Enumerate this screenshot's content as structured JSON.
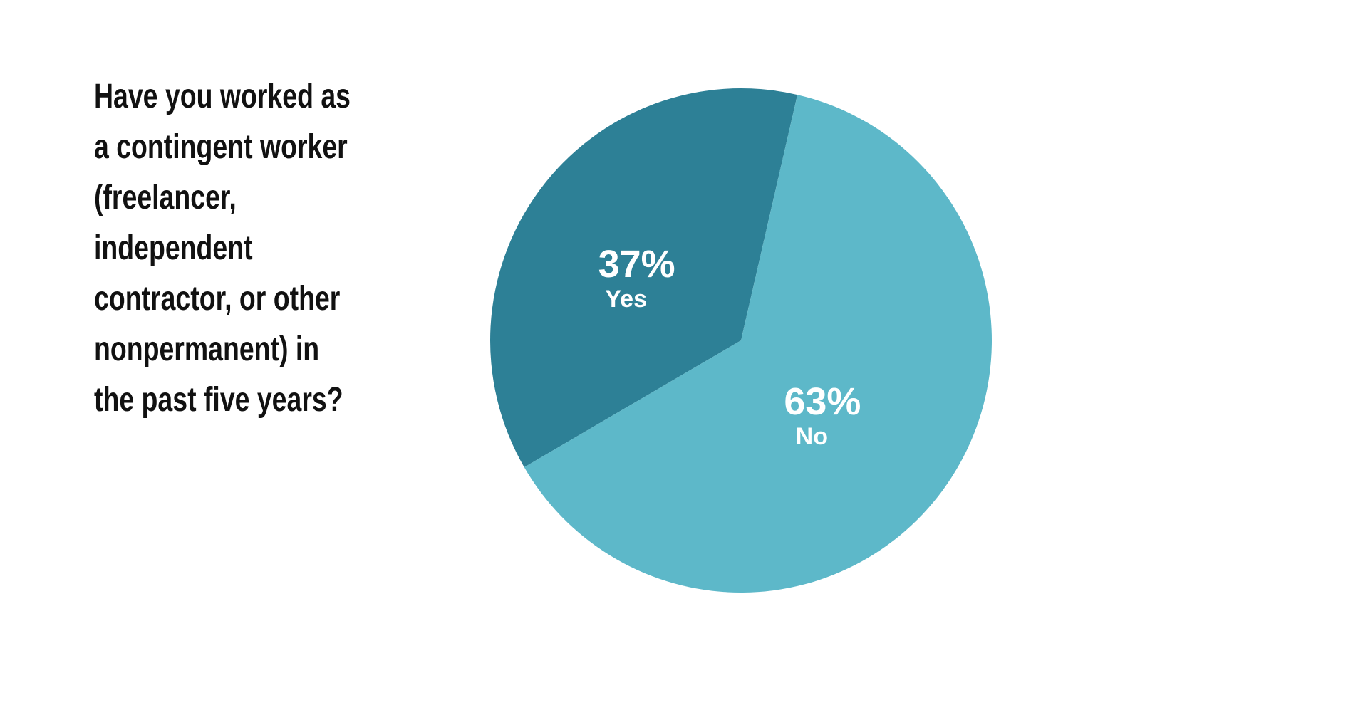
{
  "chart_data": {
    "type": "pie",
    "title": "Have you worked as\na contingent worker\n(freelancer,\nindependent\ncontractor, or other\nnonpermanent) in\nthe past five years?",
    "slices": [
      {
        "label": "Yes",
        "value": 37,
        "display": "37%",
        "color": "#2d8096"
      },
      {
        "label": "No",
        "value": 63,
        "display": "63%",
        "color": "#5db8c9"
      }
    ],
    "legend": "none",
    "start_angle_deg": 13
  }
}
